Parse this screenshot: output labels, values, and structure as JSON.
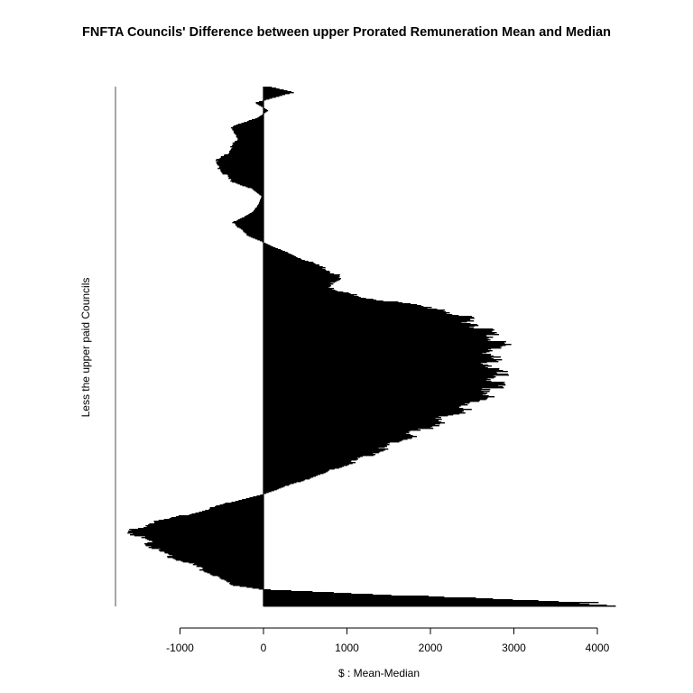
{
  "chart_data": {
    "type": "bar",
    "orientation": "horizontal",
    "title": "FNFTA Councils' Difference between upper Prorated Remuneration Mean and Median",
    "xlabel": "$ : Mean-Median",
    "ylabel": "Less the upper paid Councils",
    "xlim": [
      -1000,
      4000
    ],
    "xticks": [
      -1000,
      0,
      1000,
      2000,
      3000,
      4000
    ],
    "grid": false,
    "bar_color": "#000000",
    "profile": [
      {
        "pos": 0.0,
        "value": 100
      },
      {
        "pos": 0.01,
        "value": 360
      },
      {
        "pos": 0.03,
        "value": -100
      },
      {
        "pos": 0.045,
        "value": 60
      },
      {
        "pos": 0.06,
        "value": -80
      },
      {
        "pos": 0.075,
        "value": -380
      },
      {
        "pos": 0.1,
        "value": -320
      },
      {
        "pos": 0.13,
        "value": -450
      },
      {
        "pos": 0.145,
        "value": -600
      },
      {
        "pos": 0.16,
        "value": -500
      },
      {
        "pos": 0.18,
        "value": -400
      },
      {
        "pos": 0.195,
        "value": -150
      },
      {
        "pos": 0.21,
        "value": -20
      },
      {
        "pos": 0.225,
        "value": -60
      },
      {
        "pos": 0.24,
        "value": -120
      },
      {
        "pos": 0.26,
        "value": -360
      },
      {
        "pos": 0.285,
        "value": -200
      },
      {
        "pos": 0.298,
        "value": -10
      },
      {
        "pos": 0.31,
        "value": 150
      },
      {
        "pos": 0.33,
        "value": 450
      },
      {
        "pos": 0.35,
        "value": 750
      },
      {
        "pos": 0.365,
        "value": 900
      },
      {
        "pos": 0.39,
        "value": 800
      },
      {
        "pos": 0.405,
        "value": 1200
      },
      {
        "pos": 0.43,
        "value": 2200
      },
      {
        "pos": 0.46,
        "value": 2600
      },
      {
        "pos": 0.49,
        "value": 2850
      },
      {
        "pos": 0.52,
        "value": 2700
      },
      {
        "pos": 0.56,
        "value": 2800
      },
      {
        "pos": 0.59,
        "value": 2700
      },
      {
        "pos": 0.62,
        "value": 2400
      },
      {
        "pos": 0.66,
        "value": 1900
      },
      {
        "pos": 0.7,
        "value": 1400
      },
      {
        "pos": 0.74,
        "value": 800
      },
      {
        "pos": 0.77,
        "value": 250
      },
      {
        "pos": 0.785,
        "value": -10
      },
      {
        "pos": 0.8,
        "value": -400
      },
      {
        "pos": 0.82,
        "value": -800
      },
      {
        "pos": 0.84,
        "value": -1350
      },
      {
        "pos": 0.855,
        "value": -1580
      },
      {
        "pos": 0.875,
        "value": -1400
      },
      {
        "pos": 0.9,
        "value": -1200
      },
      {
        "pos": 0.92,
        "value": -850
      },
      {
        "pos": 0.945,
        "value": -550
      },
      {
        "pos": 0.96,
        "value": -350
      },
      {
        "pos": 0.968,
        "value": -10
      },
      {
        "pos": 0.975,
        "value": 1000
      },
      {
        "pos": 0.985,
        "value": 2500
      },
      {
        "pos": 0.993,
        "value": 3800
      },
      {
        "pos": 1.0,
        "value": 4350
      }
    ]
  }
}
